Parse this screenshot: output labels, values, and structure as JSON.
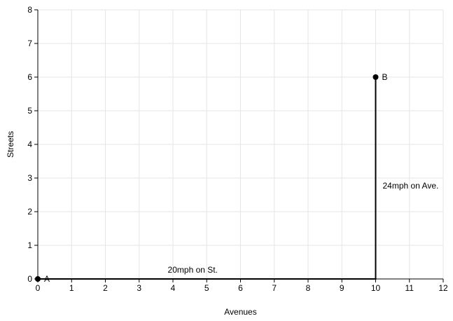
{
  "chart_data": {
    "type": "line",
    "xlabel": "Avenues",
    "ylabel": "Streets",
    "xlim": [
      0,
      12
    ],
    "ylim": [
      0,
      8
    ],
    "x_ticks": [
      0,
      1,
      2,
      3,
      4,
      5,
      6,
      7,
      8,
      9,
      10,
      11,
      12
    ],
    "y_ticks": [
      0,
      1,
      2,
      3,
      4,
      5,
      6,
      7,
      8
    ],
    "grid": true,
    "series": [
      {
        "x": [
          0,
          10,
          10
        ],
        "y": [
          0,
          0,
          6
        ]
      }
    ],
    "points": [
      {
        "label": "A",
        "x": 0,
        "y": 0
      },
      {
        "label": "B",
        "x": 10,
        "y": 6
      }
    ],
    "annotations": [
      {
        "text": "20mph on St.",
        "x": 5,
        "y": 0
      },
      {
        "text": "24mph on Ave.",
        "x": 10,
        "y": 3
      }
    ],
    "colors": {
      "line": "#000000",
      "grid": "#e6e6e6"
    }
  }
}
